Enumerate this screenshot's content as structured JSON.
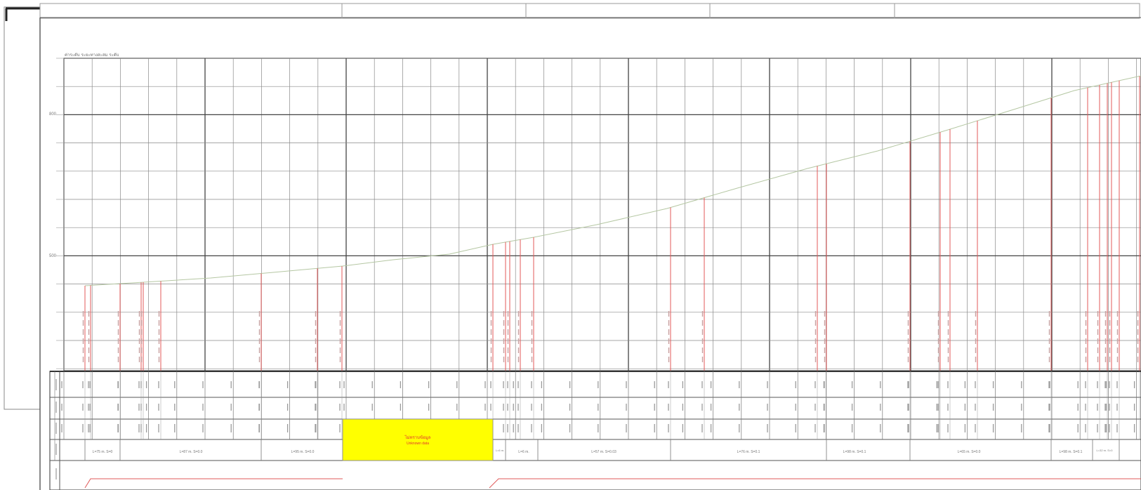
{
  "drawing": {
    "header_note": "ค่าระดับ ระยะทางสะสม ระดับ",
    "y_axis_labels": [
      "800",
      "500"
    ],
    "highlight_label_top": "ไม่ทราบข้อมูล",
    "highlight_label_bottom": "Unknown data",
    "segment_labels": [
      "L=75 m. S=0",
      "L=87 m. S=0.0",
      "L=95 m. S=0.0",
      "L=6 m.",
      "L=57 m. S=0.03",
      "L=76 m. S=0.1",
      "L=98 m. S=0.1",
      "L=65 m. S=0.0",
      "L=98 m. S=0.1",
      "L=32 m. S=0",
      "L=6 m."
    ],
    "colors": {
      "grid": "#5a5a5a",
      "stake": "#e35a5a",
      "profile": "#b5c7a3",
      "highlight": "#ffff00",
      "highlight_text": "#e03030"
    }
  }
}
